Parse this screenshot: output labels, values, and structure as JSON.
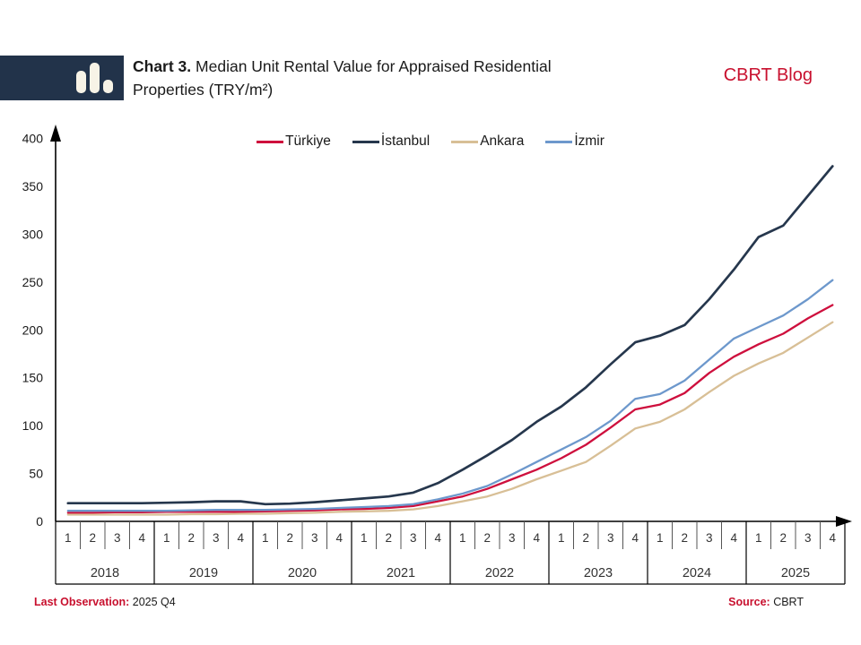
{
  "header": {
    "title_bold": "Chart 3.",
    "title_line1": "Median Unit Rental Value for Appraised Residential",
    "title_line2": "Properties (TRY/m²)",
    "blog": "CBRT Blog"
  },
  "footer": {
    "last_obs_label": "Last Observation:",
    "last_obs_value": "2025 Q4",
    "source_label": "Source:",
    "source_value": "CBRT"
  },
  "chart_data": {
    "type": "line",
    "title": "Median Unit Rental Value for Appraised Residential Properties (TRY/m²)",
    "ylabel": "TRY/m²",
    "ylim": [
      0,
      400
    ],
    "yticks": [
      0,
      50,
      100,
      150,
      200,
      250,
      300,
      350,
      400
    ],
    "grid": false,
    "legend_position": "top",
    "x_axis": {
      "years": [
        "2018",
        "2019",
        "2020",
        "2021",
        "2022",
        "2023",
        "2024",
        "2025"
      ],
      "quarter_labels": [
        "1",
        "2",
        "3",
        "4"
      ]
    },
    "series": [
      {
        "name": "Türkiye",
        "color": "#ce0f3d",
        "values": [
          9,
          9,
          9.5,
          9.5,
          10,
          10,
          10,
          10,
          10.5,
          11,
          11.5,
          12.5,
          13,
          14,
          16,
          21,
          26,
          34,
          44,
          54,
          66,
          80,
          98,
          117,
          122,
          134,
          155,
          172,
          185,
          196,
          212,
          226
        ]
      },
      {
        "name": "İstanbul",
        "color": "#26374d",
        "values": [
          19,
          19,
          19,
          19,
          19.5,
          20,
          21,
          21,
          18,
          18.5,
          20,
          22,
          24,
          26,
          30,
          40,
          54,
          69,
          85,
          104,
          120,
          140,
          164,
          187,
          194,
          205,
          232,
          263,
          297,
          309,
          340,
          371
        ]
      },
      {
        "name": "Ankara",
        "color": "#d8bf96",
        "values": [
          7,
          7,
          7,
          7,
          7,
          7.5,
          7.5,
          8,
          8,
          8.5,
          9,
          10,
          10.5,
          11,
          12.5,
          16,
          21,
          26,
          34,
          44,
          53,
          62,
          79,
          97,
          104,
          117,
          135,
          152,
          165,
          176,
          192,
          208
        ]
      },
      {
        "name": "İzmir",
        "color": "#6d98cc",
        "values": [
          11,
          11,
          11,
          11,
          11,
          11.5,
          12,
          12,
          12,
          12.5,
          13,
          14,
          15,
          16,
          18,
          23,
          29,
          37,
          49,
          62,
          75,
          88,
          105,
          128,
          133,
          147,
          169,
          191,
          203,
          215,
          232,
          252
        ]
      }
    ]
  }
}
